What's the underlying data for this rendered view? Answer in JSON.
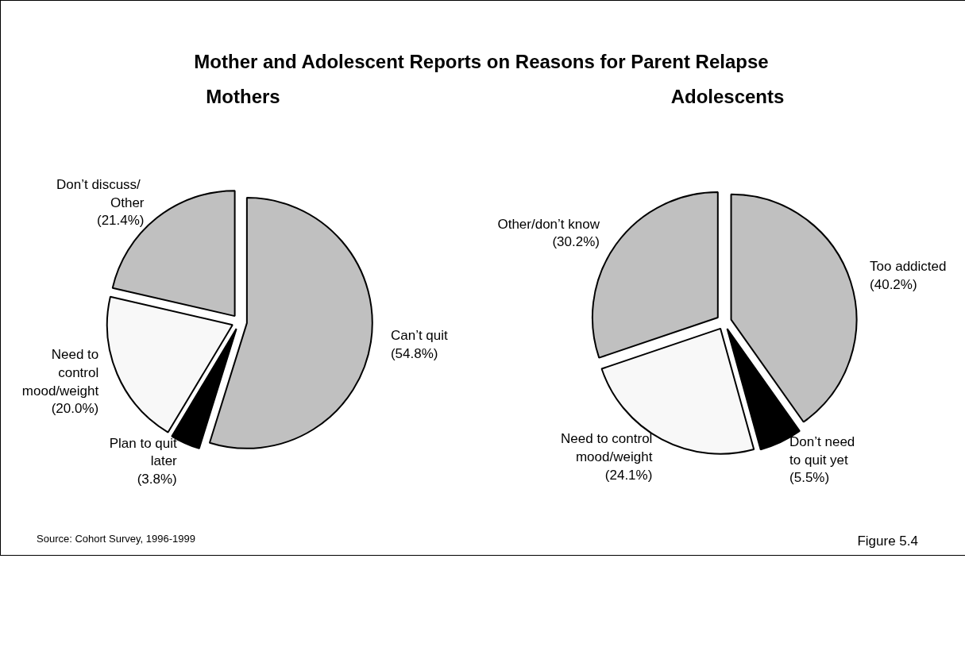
{
  "chart_data": [
    {
      "type": "pie",
      "title": "Mother and Adolescent Reports on Reasons for Parent Relapse",
      "subtitle": "Mothers",
      "categories": [
        "Can’t quit",
        "Plan to quit\nlater",
        "Need to\ncontrol\nmood/weight",
        "Don’t  discuss/\nOther"
      ],
      "values": [
        54.8,
        3.8,
        20.0,
        21.4
      ],
      "value_labels": [
        "(54.8%)",
        "(3.8%)",
        "(20.0%)",
        "(21.4%)"
      ],
      "colors": [
        "#c0c0c0",
        "#000000",
        "#f8f8f8",
        "#c0c0c0"
      ],
      "annotations": [
        "Source:  Cohort Survey, 1996-1999"
      ]
    },
    {
      "type": "pie",
      "subtitle": "Adolescents",
      "categories": [
        "Too addicted",
        "Don’t need\nto quit yet",
        "Need to control\nmood/weight",
        "Other/don’t know"
      ],
      "values": [
        40.2,
        5.5,
        24.1,
        30.2
      ],
      "value_labels": [
        "(40.2%)",
        "(5.5%)",
        "(24.1%)",
        "(30.2%)"
      ],
      "colors": [
        "#c0c0c0",
        "#000000",
        "#f8f8f8",
        "#c0c0c0"
      ],
      "annotations": [
        "Figure 5.4"
      ]
    }
  ]
}
